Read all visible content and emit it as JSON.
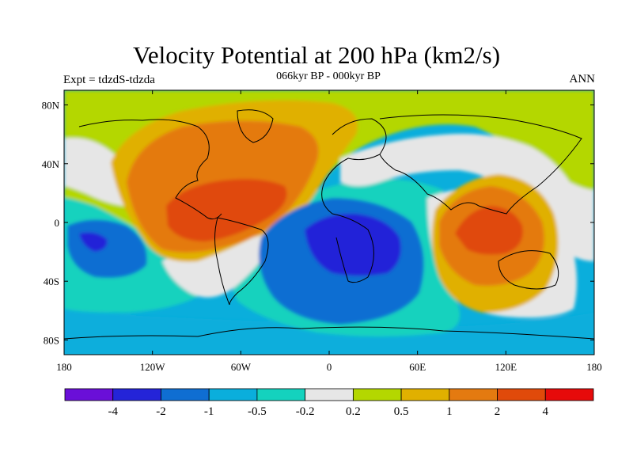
{
  "header": {
    "title": "Velocity Potential at 200 hPa (km2/s)",
    "subtitle": "066kyr BP - 000kyr BP",
    "left_label": "Expt = tdzdS-tdzda",
    "right_label": "ANN"
  },
  "map": {
    "x_ticks": [
      "180",
      "120W",
      "60W",
      "0",
      "60E",
      "120E",
      "180"
    ],
    "y_ticks": [
      "80N",
      "40N",
      "0",
      "40S",
      "80S"
    ],
    "lon_range": [
      -180,
      180
    ],
    "lat_range": [
      -90,
      90
    ]
  },
  "colorbar": {
    "colors": [
      "#6a0fd8",
      "#2424d8",
      "#0f6ed2",
      "#0aaedc",
      "#14d2be",
      "#e6e6e6",
      "#b4d700",
      "#e0b000",
      "#e47a10",
      "#e04a0a",
      "#e60a0a"
    ],
    "labels": [
      "-4",
      "-2",
      "-1",
      "-0.5",
      "-0.2",
      "0.2",
      "0.5",
      "1",
      "2",
      "4"
    ]
  }
}
